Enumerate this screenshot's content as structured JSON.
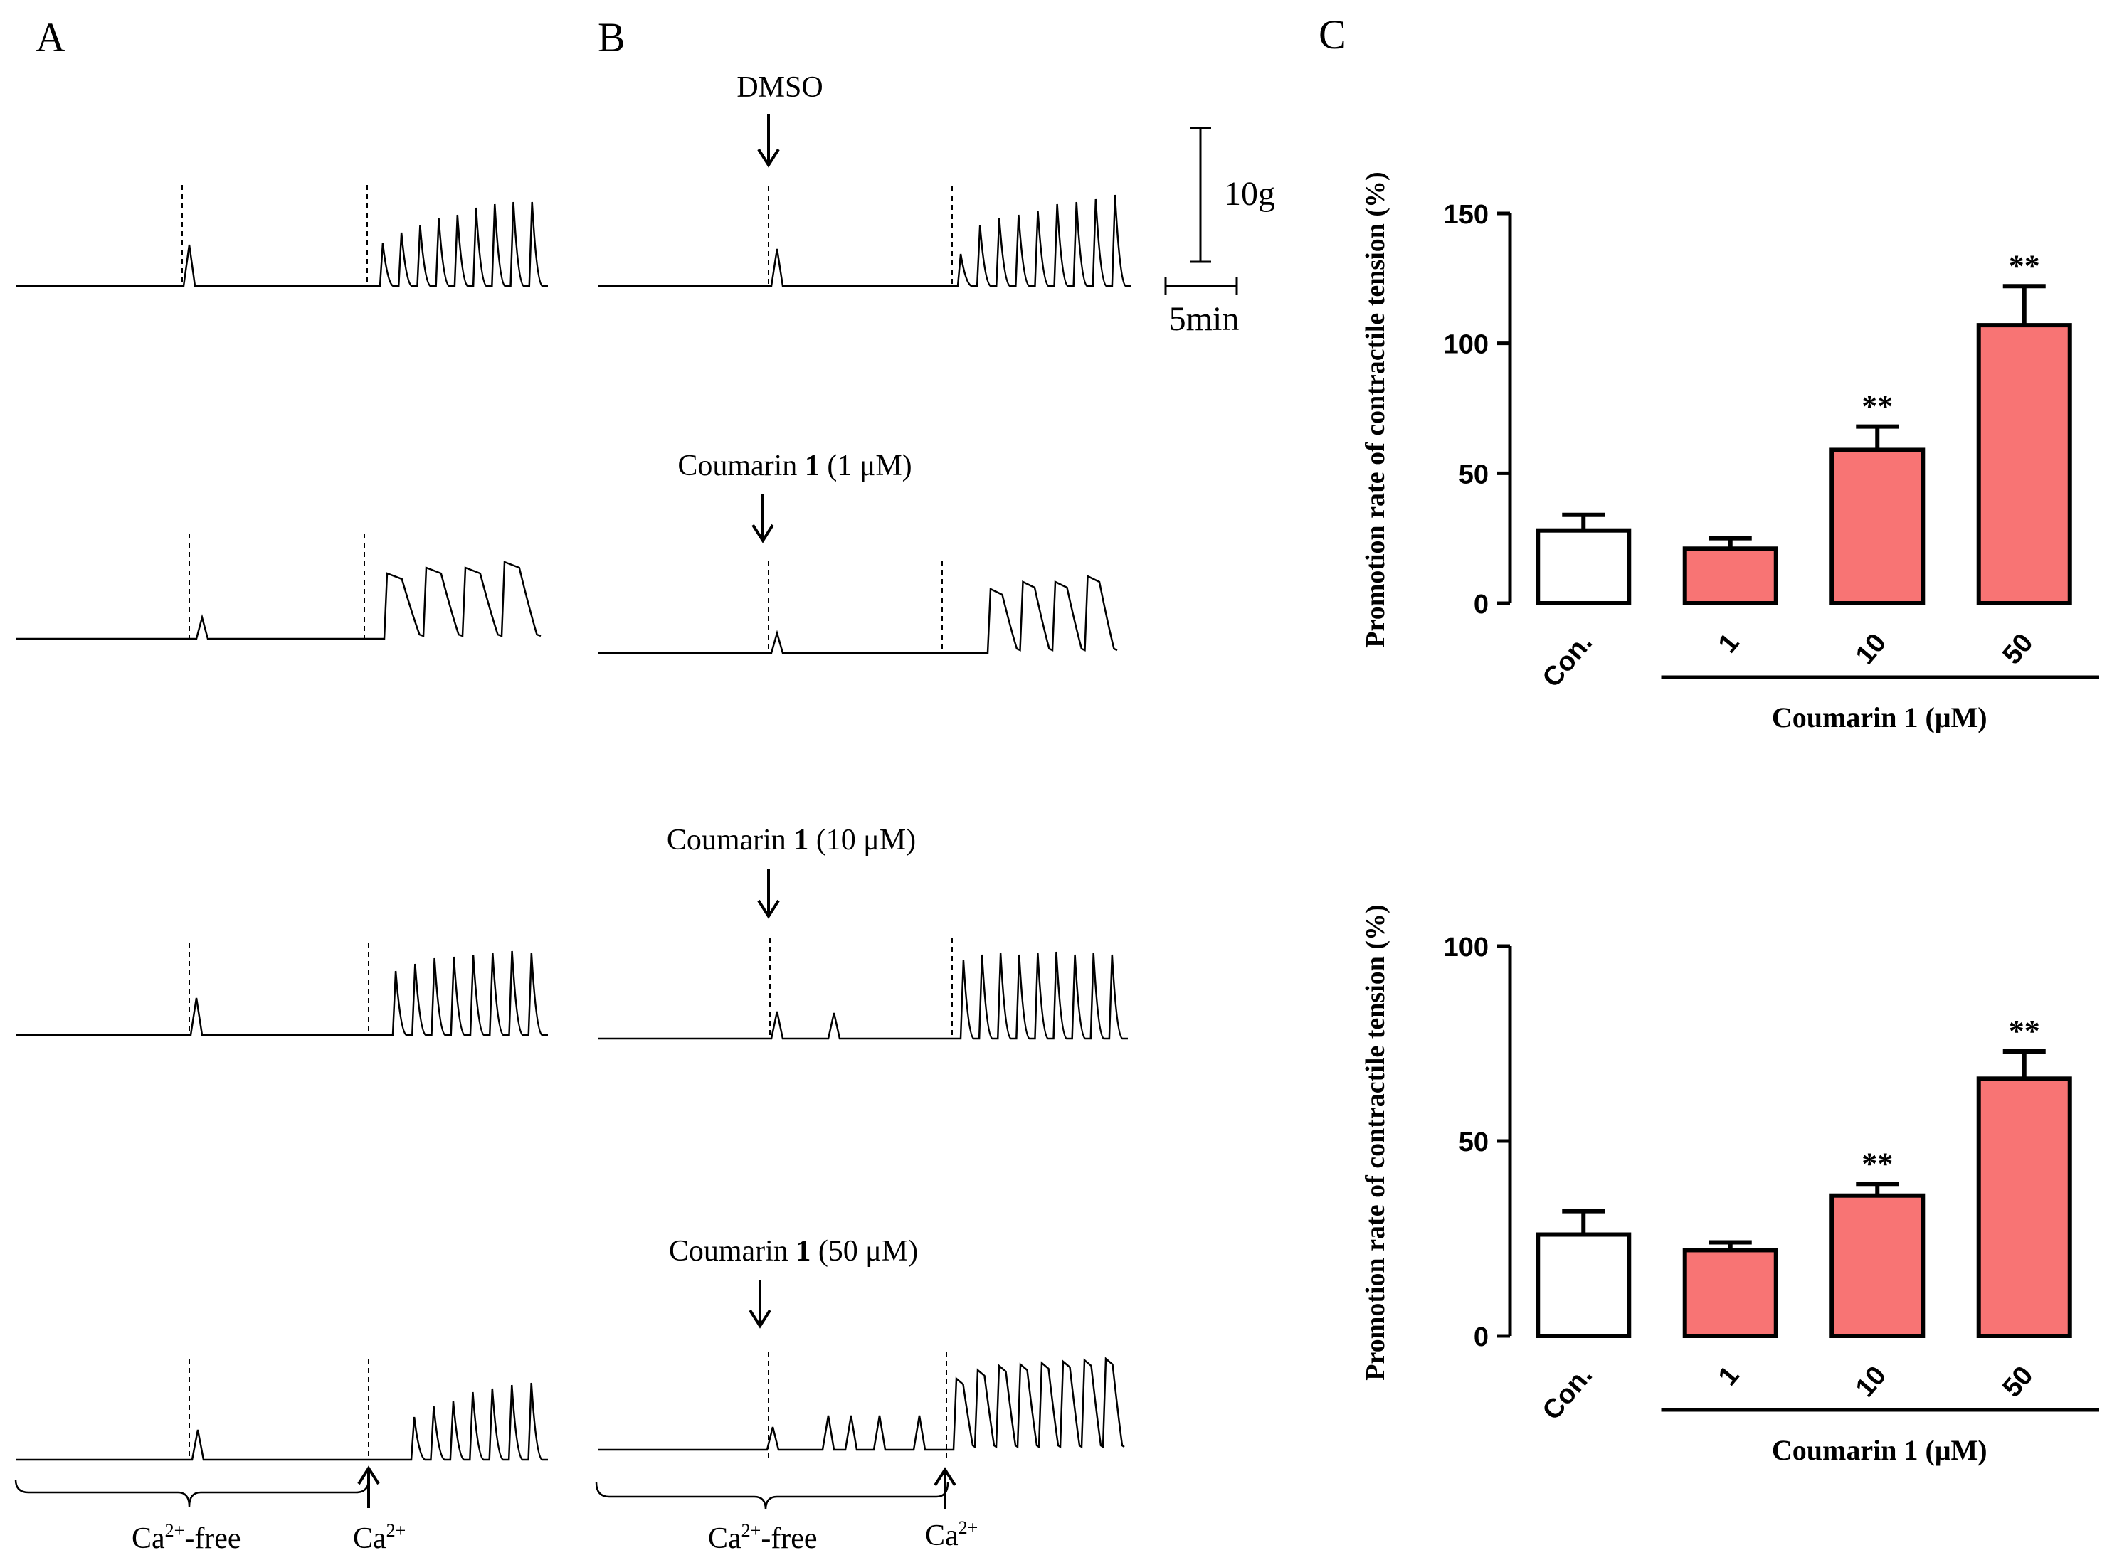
{
  "panel_labels": {
    "a": "A",
    "b": "B",
    "c": "C"
  },
  "traces": {
    "b_conditions": {
      "dmso": "DMSO",
      "c1": {
        "prefix": "Coumarin ",
        "bold": "1",
        "suffix": " (1 μM)"
      },
      "c10": {
        "prefix": "Coumarin ",
        "bold": "1",
        "suffix": " (10 μM)"
      },
      "c50": {
        "prefix": "Coumarin ",
        "bold": "1",
        "suffix": " (50 μM)"
      }
    },
    "scale_bar": {
      "tension": "10g",
      "time": "5min"
    },
    "phase_labels": {
      "ca_free_base": "Ca",
      "ca_free_sup": "2+",
      "ca_free_suffix": "-free",
      "ca_base": "Ca",
      "ca_sup": "2+"
    },
    "pulse_counts": {
      "a1": 9,
      "a2": 4,
      "a3": 8,
      "a4": 7,
      "b1": 9,
      "b2": 4,
      "b3": 9,
      "b4": 8
    }
  },
  "chart_data": [
    {
      "type": "bar",
      "ylabel": "Promotion rate of contractile tension (%)",
      "xgroup_label": {
        "prefix": "Coumarin ",
        "bold": "1",
        "suffix": " (μM)"
      },
      "categories": [
        "Con.",
        "1",
        "10",
        "50"
      ],
      "values": [
        28,
        21,
        59,
        107
      ],
      "errors": [
        6,
        4,
        9,
        15
      ],
      "significance": [
        "",
        "",
        "**",
        "**"
      ],
      "yticks": [
        "0",
        "50",
        "100",
        "150"
      ],
      "ylim": [
        0,
        150
      ],
      "colors": {
        "control": "#ffffff",
        "treated": "#f87474",
        "edge": "#000000"
      }
    },
    {
      "type": "bar",
      "ylabel": "Promotion rate of contractile tension (%)",
      "xgroup_label": {
        "prefix": "Coumarin ",
        "bold": "1",
        "suffix": " (μM)"
      },
      "categories": [
        "Con.",
        "1",
        "10",
        "50"
      ],
      "values": [
        26,
        22,
        36,
        66
      ],
      "errors": [
        6,
        2,
        3,
        7
      ],
      "significance": [
        "",
        "",
        "**",
        "**"
      ],
      "yticks": [
        "0",
        "50",
        "100"
      ],
      "ylim": [
        0,
        100
      ],
      "colors": {
        "control": "#ffffff",
        "treated": "#f87474",
        "edge": "#000000"
      }
    }
  ]
}
